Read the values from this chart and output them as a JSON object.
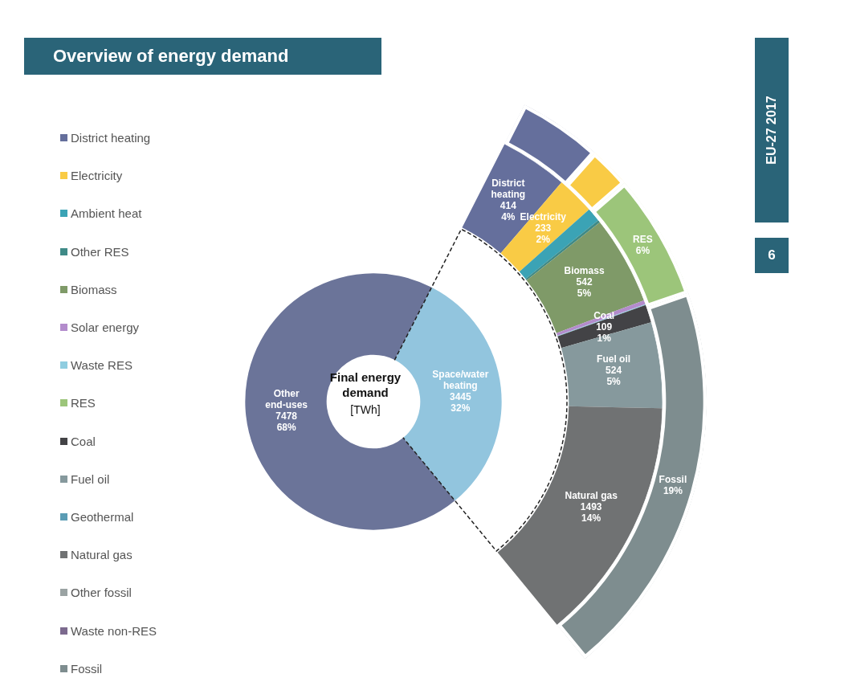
{
  "chart_data": [
    {
      "type": "donut",
      "title": "Overview of energy demand",
      "categories": [
        "Space/water heating",
        "Other end-uses"
      ],
      "values": [
        3445,
        7478
      ],
      "colors": [
        "#92c5de",
        "#6b7499"
      ],
      "value_labels": [
        "3445\n32%",
        "7478\n68%"
      ],
      "annotations": [
        "Final energy demand",
        "[TWh]",
        "EU-27 2017",
        "6"
      ]
    },
    {
      "type": "donut",
      "categories": [
        "District heating",
        "Electricity",
        "Ambient heat",
        "Other RES",
        "Biomass",
        "Solar energy",
        "Waste RES",
        "RES",
        "Coal",
        "Fuel oil",
        "Geothermal",
        "Natural gas",
        "Other fossil",
        "Waste non-RES",
        "Fossil"
      ],
      "colors": [
        "#656f9c",
        "#f9cb45",
        "#3ba3b5",
        "#3f8a87",
        "#7f9a68",
        "#b38ccc",
        "#8fcde0",
        "#9cc57a",
        "#434346",
        "#86999d",
        "#5b9cb4",
        "#707273",
        "#9aa3a3",
        "#7c6a8e",
        "#7e8d8f"
      ],
      "legend": "left",
      "series": [
        {
          "values": [
            414,
            233,
            85,
            15,
            542,
            25,
            5,
            null,
            109,
            524,
            0,
            1493,
            0,
            0,
            null
          ],
          "value_labels": [
            "414\n4%",
            "233\n2%",
            null,
            null,
            "542\n5%",
            null,
            null,
            null,
            "109\n1%",
            "524\n5%",
            null,
            "1493\n14%",
            null,
            null,
            null
          ]
        },
        {
          "values": [
            4,
            2,
            null,
            null,
            null,
            null,
            null,
            6,
            null,
            null,
            null,
            null,
            null,
            null,
            19
          ],
          "value_labels": [
            null,
            null,
            null,
            null,
            null,
            null,
            null,
            "6%",
            null,
            null,
            null,
            null,
            null,
            null,
            "19%"
          ]
        }
      ]
    }
  ]
}
